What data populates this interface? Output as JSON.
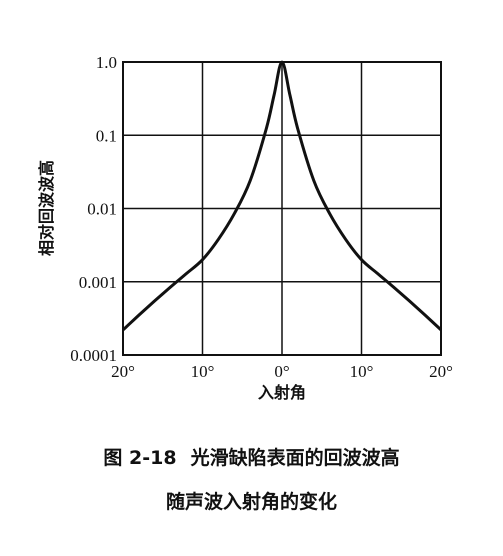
{
  "chart_data": {
    "type": "line",
    "x_tick_labels": [
      "20°",
      "10°",
      "0°",
      "10°",
      "20°"
    ],
    "y_tick_labels": [
      "1.0",
      "0.1",
      "0.01",
      "0.001",
      "0.0001"
    ],
    "y_scale": "log",
    "ylim": [
      0.0001,
      1.0
    ],
    "xlim": [
      -20,
      20
    ],
    "xlabel": "入射角",
    "ylabel": "相对回波波高",
    "grid": true,
    "series": [
      {
        "color": "#111111",
        "x": [
          -20,
          -18,
          -16,
          -14,
          -12,
          -10,
          -8,
          -6,
          -4,
          -2,
          -1,
          0,
          1,
          2,
          4,
          6,
          8,
          10,
          12,
          14,
          16,
          18,
          20
        ],
        "y": [
          0.00022,
          0.00035,
          0.00055,
          0.00085,
          0.0013,
          0.002,
          0.0038,
          0.0085,
          0.024,
          0.12,
          0.35,
          1.0,
          0.35,
          0.12,
          0.024,
          0.0085,
          0.0038,
          0.002,
          0.0013,
          0.00085,
          0.00055,
          0.00035,
          0.00022
        ]
      }
    ]
  },
  "caption": {
    "number": "图 2-18",
    "line1": "光滑缺陷表面的回波波高",
    "line2": "随声波入射角的变化"
  }
}
